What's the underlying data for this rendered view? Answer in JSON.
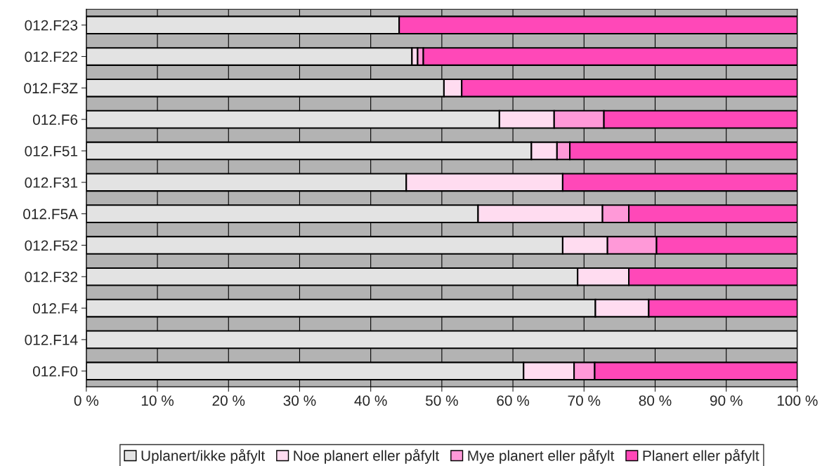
{
  "chart_data": {
    "type": "bar",
    "orientation": "horizontal",
    "stacked": true,
    "categories": [
      "012.F23",
      "012.F22",
      "012.F3Z",
      "012.F6",
      "012.F51",
      "012.F31",
      "012.F5A",
      "012.F52",
      "012.F32",
      "012.F4",
      "012.F14",
      "012.F0"
    ],
    "series": [
      {
        "name": "Uplanert/ikke påfylt",
        "color": "#e3e3e3",
        "values": [
          44.0,
          45.8,
          50.3,
          58.1,
          62.6,
          45.0,
          55.1,
          67.0,
          69.1,
          71.6,
          100,
          61.5
        ]
      },
      {
        "name": "Noe planert eller påfylt",
        "color": "#ffdcf0",
        "values": [
          null,
          0.8,
          2.5,
          7.7,
          3.6,
          22.0,
          17.5,
          6.3,
          7.2,
          7.5,
          null,
          7.1
        ]
      },
      {
        "name": "Mye planert eller påfylt",
        "color": "#ff99d8",
        "values": [
          null,
          0.8,
          null,
          7.0,
          1.8,
          null,
          3.7,
          6.9,
          null,
          null,
          null,
          2.9
        ]
      },
      {
        "name": "Planert eller påfylt",
        "color": "#ff48b8",
        "values": [
          56.0,
          52.6,
          47.2,
          27.2,
          32.0,
          33.0,
          23.7,
          19.8,
          23.7,
          20.9,
          null,
          28.5
        ]
      }
    ],
    "xlim": [
      0,
      100
    ],
    "xticks": [
      {
        "value": 0,
        "label": "0 %"
      },
      {
        "value": 10,
        "label": "10 %"
      },
      {
        "value": 20,
        "label": "20 %"
      },
      {
        "value": 30,
        "label": "30 %"
      },
      {
        "value": 40,
        "label": "40 %"
      },
      {
        "value": 50,
        "label": "50 %"
      },
      {
        "value": 60,
        "label": "60 %"
      },
      {
        "value": 70,
        "label": "70 %"
      },
      {
        "value": 80,
        "label": "80 %"
      },
      {
        "value": 90,
        "label": "90 %"
      },
      {
        "value": 100,
        "label": "100 %"
      }
    ],
    "grid": "x",
    "legend": "bottom"
  }
}
